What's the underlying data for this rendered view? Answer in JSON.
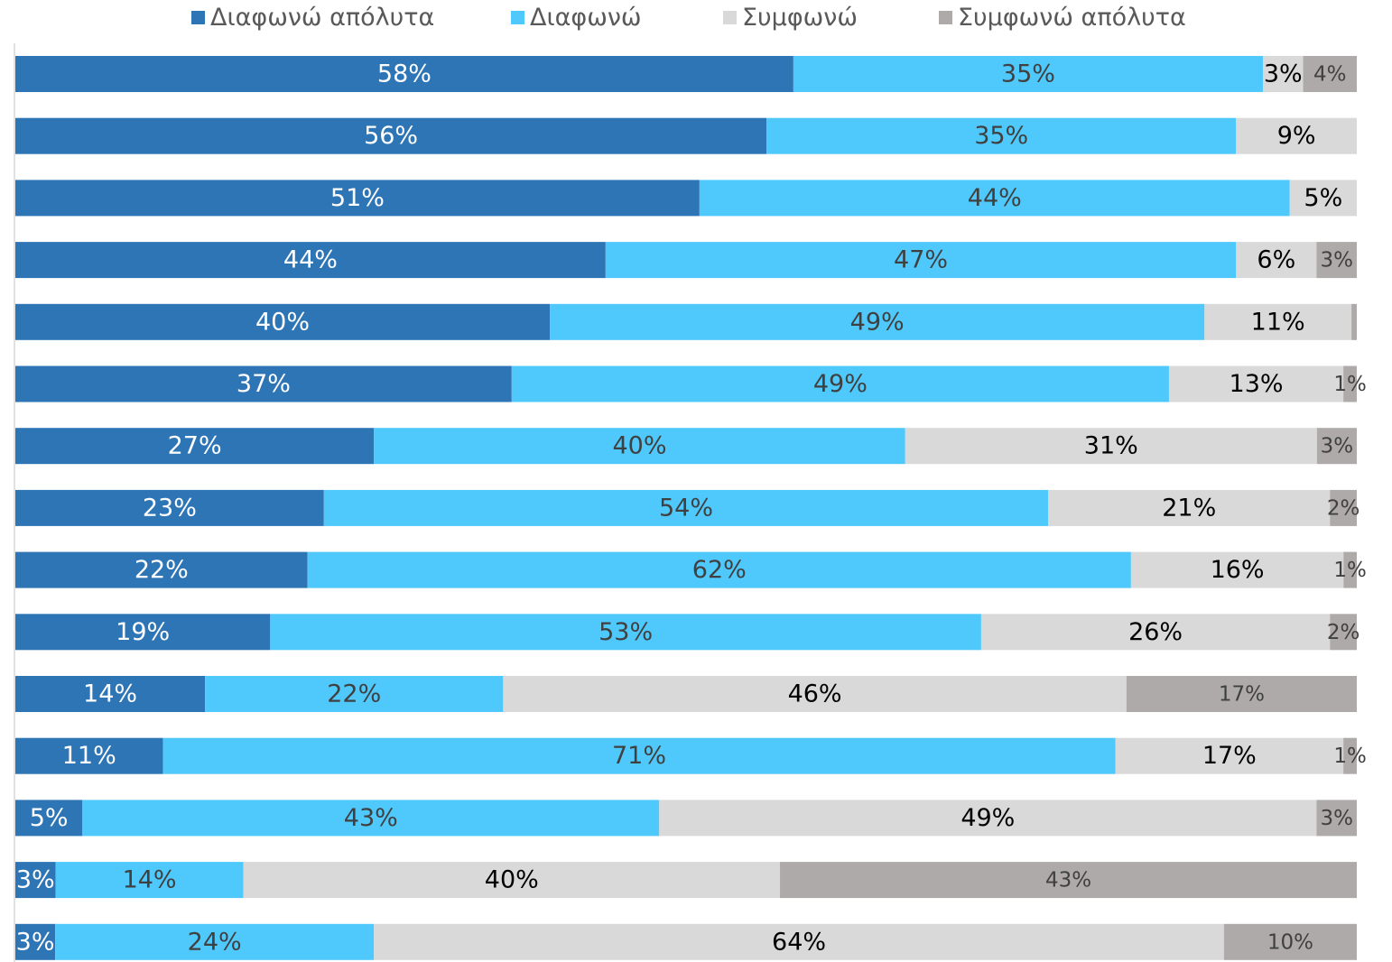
{
  "chart_data": {
    "type": "bar",
    "orientation": "horizontal",
    "stacked": true,
    "percent_stacked": true,
    "legend_position": "top",
    "grid": false,
    "colors": [
      "#2e75b6",
      "#4fc9fc",
      "#d9d9d9",
      "#aeaaaa"
    ],
    "label_colors": [
      "#ffffff",
      "#404040",
      "#000000",
      "#404040"
    ],
    "series": [
      {
        "name": "Διαφωνώ απόλυτα",
        "values": [
          58,
          56,
          51,
          44,
          40,
          37,
          27,
          23,
          22,
          19,
          14,
          11,
          5,
          3,
          3
        ]
      },
      {
        "name": "Διαφωνώ",
        "values": [
          35,
          35,
          44,
          47,
          49,
          49,
          40,
          54,
          62,
          53,
          22,
          71,
          43,
          14,
          24
        ]
      },
      {
        "name": "Συμφωνώ",
        "values": [
          3,
          9,
          5,
          6,
          11,
          13,
          31,
          21,
          16,
          26,
          46,
          17,
          49,
          40,
          64
        ]
      },
      {
        "name": "Συμφωνώ απόλυτα",
        "values": [
          4,
          0,
          0,
          3,
          0.4,
          1,
          3,
          2,
          1,
          2,
          17,
          1,
          3,
          43,
          10
        ]
      }
    ],
    "data_labels": [
      [
        "58%",
        "35%",
        "3%",
        "4%"
      ],
      [
        "56%",
        "35%",
        "9%",
        ""
      ],
      [
        "51%",
        "44%",
        "5%",
        ""
      ],
      [
        "44%",
        "47%",
        "6%",
        "3%"
      ],
      [
        "40%",
        "49%",
        "11%",
        ""
      ],
      [
        "37%",
        "49%",
        "13%",
        "1%"
      ],
      [
        "27%",
        "40%",
        "31%",
        "3%"
      ],
      [
        "23%",
        "54%",
        "21%",
        "2%"
      ],
      [
        "22%",
        "62%",
        "16%",
        "1%"
      ],
      [
        "19%",
        "53%",
        "26%",
        "2%"
      ],
      [
        "14%",
        "22%",
        "46%",
        "17%"
      ],
      [
        "11%",
        "71%",
        "17%",
        "1%"
      ],
      [
        "5%",
        "43%",
        "49%",
        "3%"
      ],
      [
        "3%",
        "14%",
        "40%",
        "43%"
      ],
      [
        "3%",
        "24%",
        "64%",
        "10%"
      ]
    ]
  }
}
